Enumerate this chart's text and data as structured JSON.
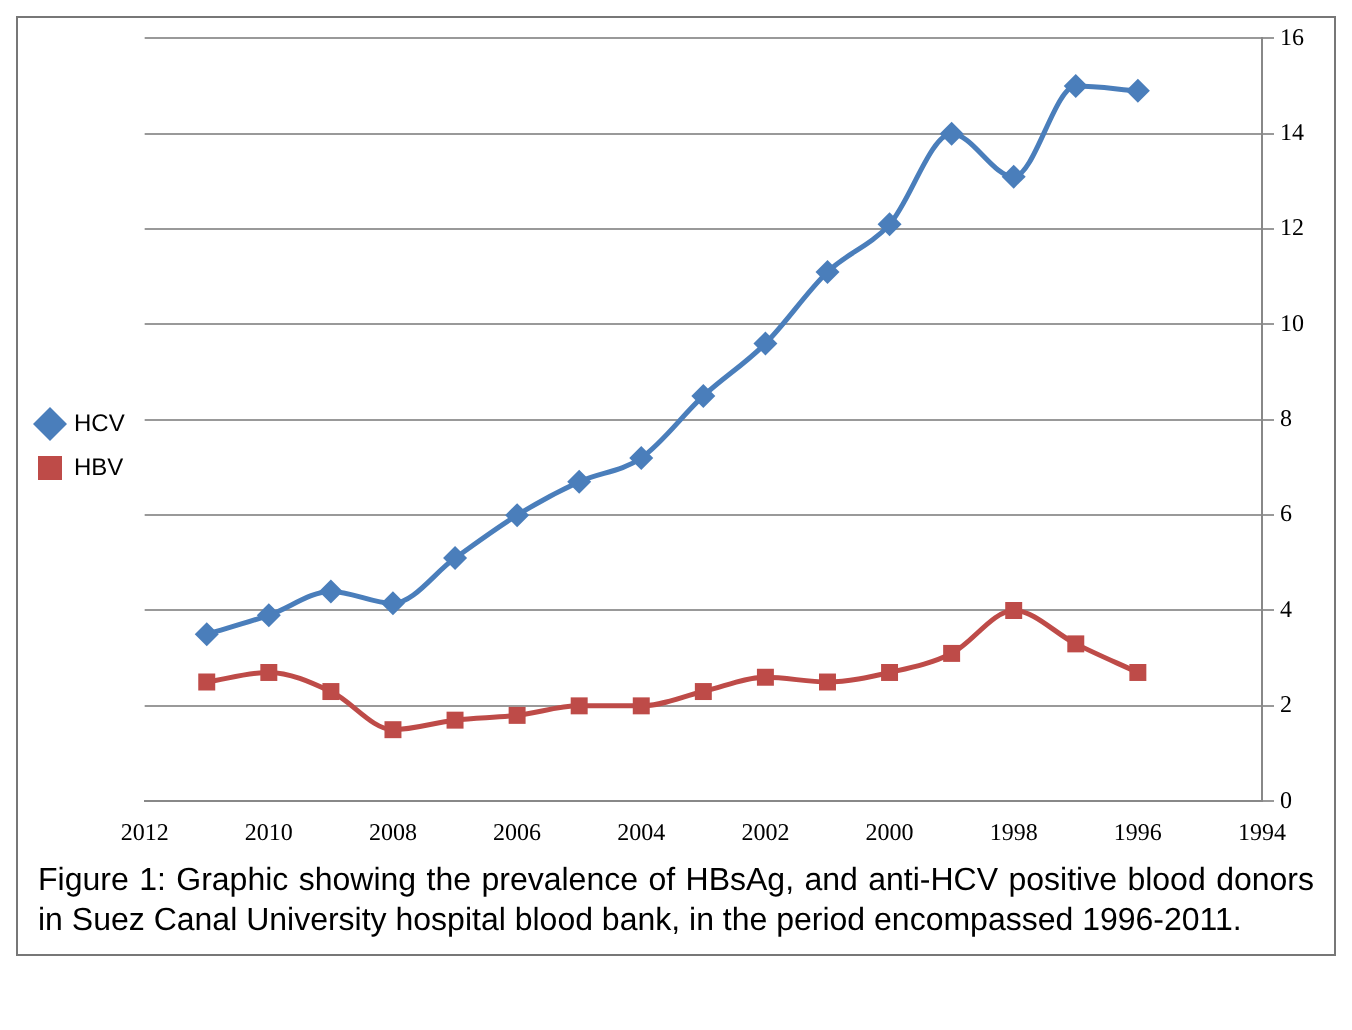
{
  "chart_data": {
    "type": "line",
    "x": [
      2011,
      2010,
      2009,
      2008,
      2007,
      2006,
      2005,
      2004,
      2003,
      2002,
      2001,
      2000,
      1999,
      1998,
      1997,
      1996
    ],
    "series": [
      {
        "name": "HCV",
        "color": "#4a7ebb",
        "marker": "diamond",
        "values": [
          3.5,
          3.9,
          4.4,
          4.15,
          5.1,
          6.0,
          6.7,
          7.2,
          8.5,
          9.6,
          11.1,
          12.1,
          14.0,
          13.1,
          15.0,
          14.9
        ]
      },
      {
        "name": "HBV",
        "color": "#be4b48",
        "marker": "square",
        "values": [
          2.5,
          2.7,
          2.3,
          1.5,
          1.7,
          1.8,
          2.0,
          2.0,
          2.3,
          2.6,
          2.5,
          2.7,
          3.1,
          4.0,
          3.3,
          2.7
        ]
      }
    ],
    "xlim": [
      2012,
      1994
    ],
    "xticks": [
      2012,
      2010,
      2008,
      2006,
      2004,
      2002,
      2000,
      1998,
      1996,
      1994
    ],
    "ylim": [
      0,
      16
    ],
    "yticks": [
      0,
      2,
      4,
      6,
      8,
      10,
      12,
      14,
      16
    ],
    "grid": "y",
    "legend": "left",
    "line_style": "solid",
    "annotations": [
      "Figure 1: Graphic showing the prevalence of HBsAg, and anti-HCV positive blood donors in Suez Canal University hospital blood bank, in the period encompassed 1996-2011."
    ]
  }
}
